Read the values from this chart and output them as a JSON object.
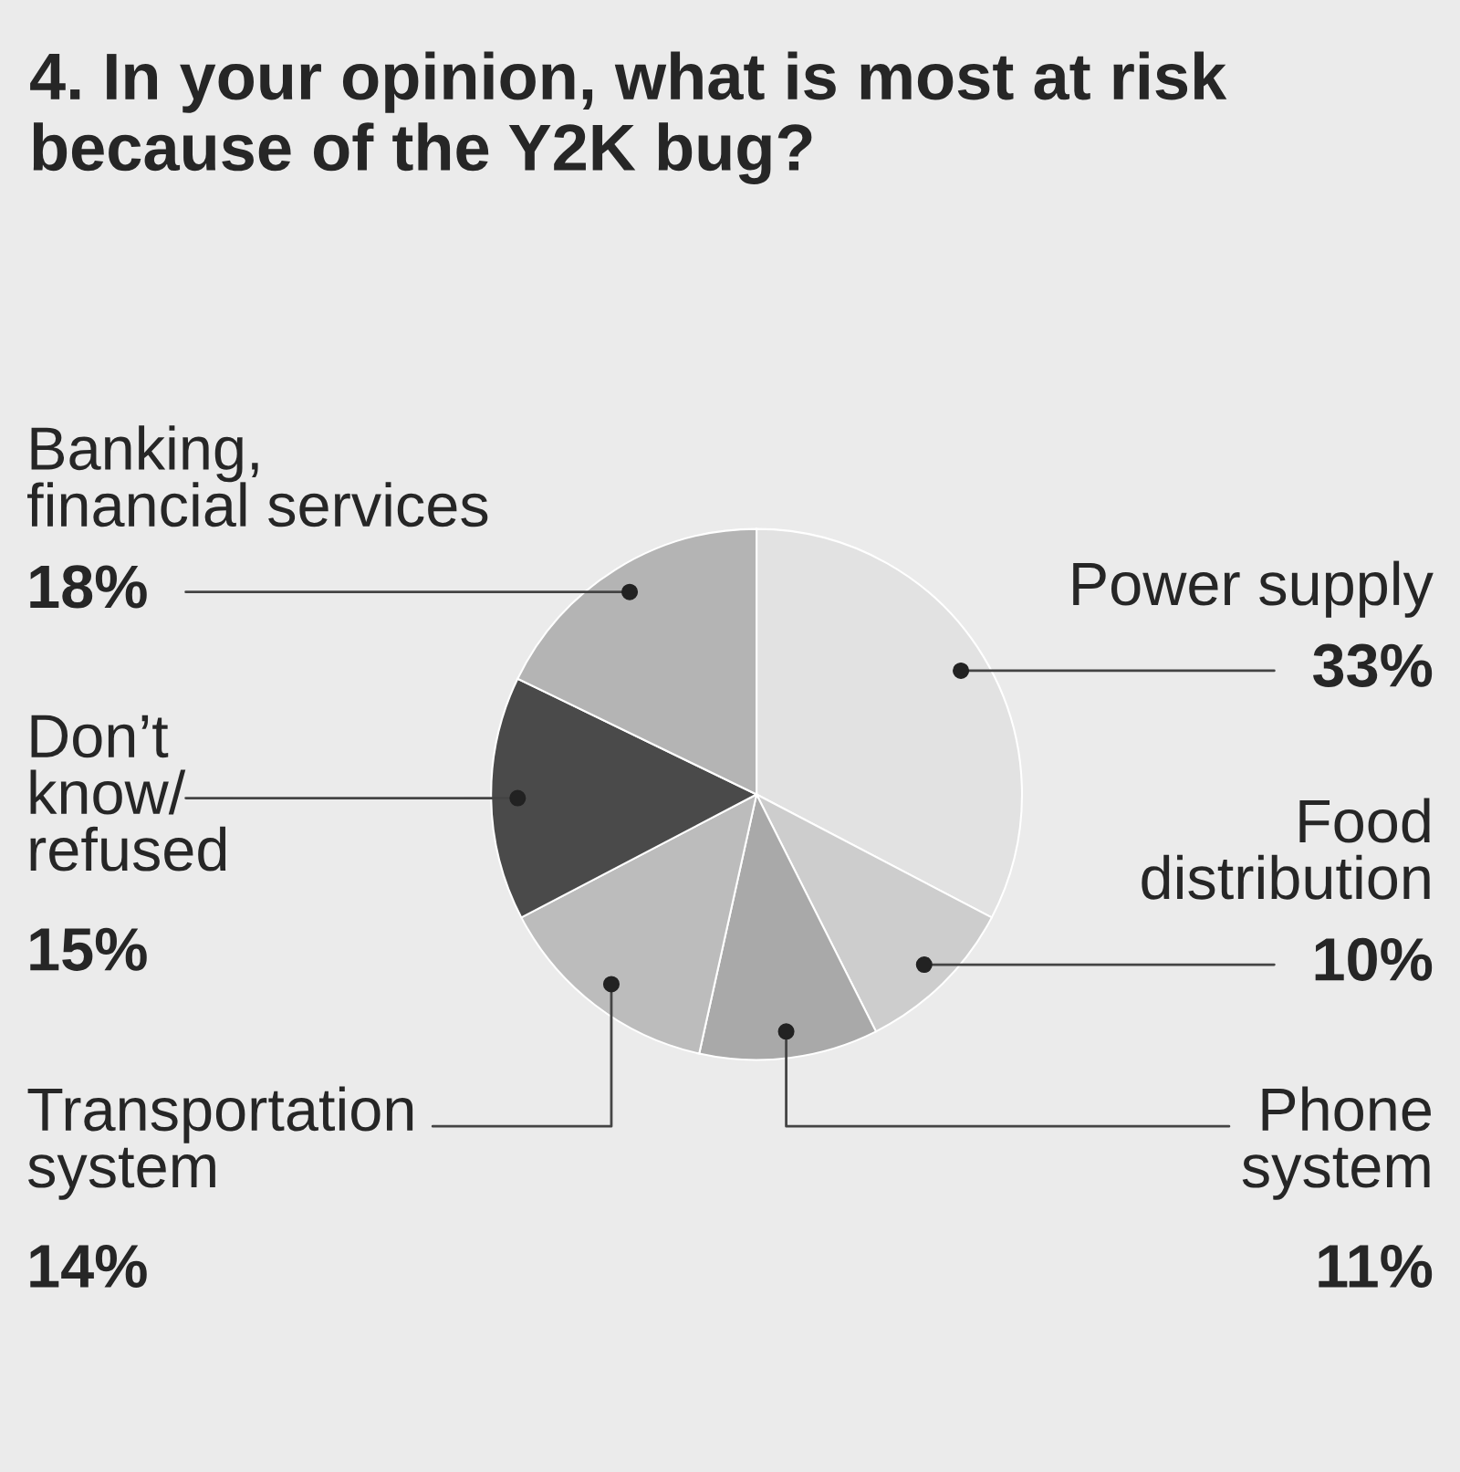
{
  "chart_data": {
    "type": "pie",
    "title": "4. In your opinion, what is most at risk because of the Y2K bug?",
    "categories": [
      "Power supply",
      "Food\ndistribution",
      "Phone\nsystem",
      "Transportation\nsystem",
      "Don’t\nknow/\nrefused",
      "Banking,\nfinancial services"
    ],
    "values": [
      33,
      10,
      11,
      14,
      15,
      18
    ],
    "value_labels": [
      "33%",
      "10%",
      "11%",
      "14%",
      "15%",
      "18%"
    ],
    "colors": [
      "#e2e2e2",
      "#cdcdcd",
      "#a9a9a9",
      "#bcbcbc",
      "#4a4a4a",
      "#b4b4b4"
    ]
  }
}
